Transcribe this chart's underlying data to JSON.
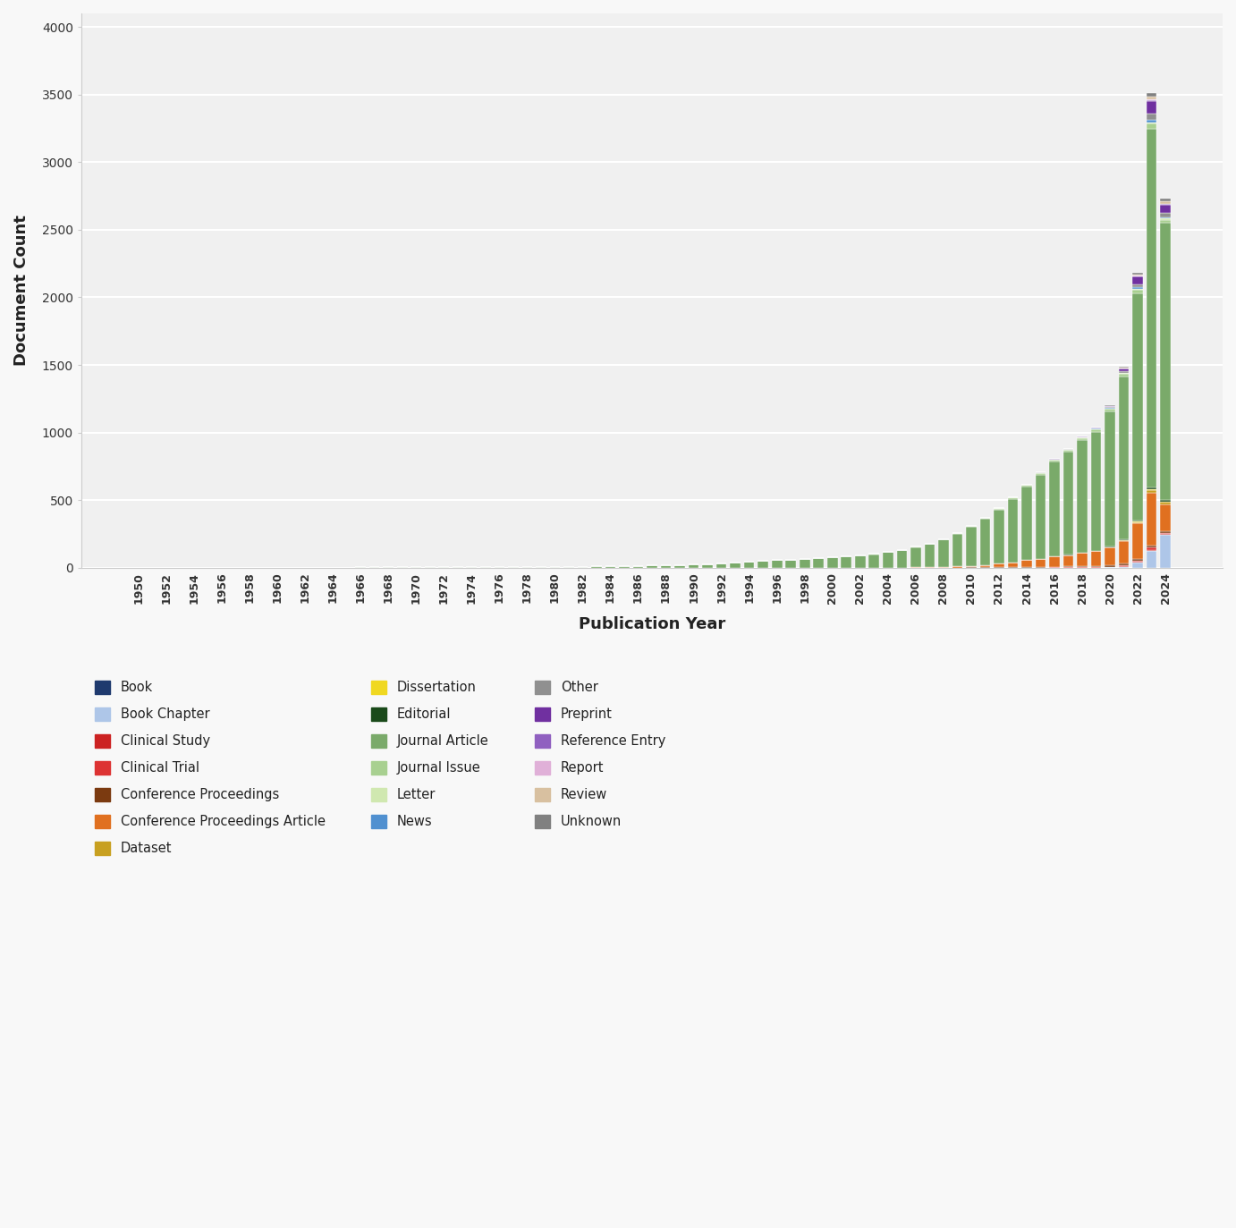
{
  "years": [
    1950,
    1951,
    1952,
    1953,
    1954,
    1955,
    1956,
    1957,
    1958,
    1959,
    1960,
    1961,
    1962,
    1963,
    1964,
    1965,
    1966,
    1967,
    1968,
    1969,
    1970,
    1971,
    1972,
    1973,
    1974,
    1975,
    1976,
    1977,
    1978,
    1979,
    1980,
    1981,
    1982,
    1983,
    1984,
    1985,
    1986,
    1987,
    1988,
    1989,
    1990,
    1991,
    1992,
    1993,
    1994,
    1995,
    1996,
    1997,
    1998,
    1999,
    2000,
    2001,
    2002,
    2003,
    2004,
    2005,
    2006,
    2007,
    2008,
    2009,
    2010,
    2011,
    2012,
    2013,
    2014,
    2015,
    2016,
    2017,
    2018,
    2019,
    2020,
    2021,
    2022,
    2023,
    2024
  ],
  "categories": [
    "Book",
    "Book Chapter",
    "Clinical Study",
    "Clinical Trial",
    "Conference Proceedings",
    "Conference Proceedings Article",
    "Dataset",
    "Dissertation",
    "Editorial",
    "Journal Article",
    "Journal Issue",
    "Letter",
    "News",
    "Other",
    "Preprint",
    "Reference Entry",
    "Report",
    "Review",
    "Unknown"
  ],
  "colors": {
    "Book": "#1f3a6e",
    "Book Chapter": "#aec6e8",
    "Clinical Study": "#cc2222",
    "Clinical Trial": "#dd3333",
    "Conference Proceedings": "#7b3a10",
    "Conference Proceedings Article": "#e07020",
    "Dataset": "#c8a020",
    "Dissertation": "#f0d820",
    "Editorial": "#1a4a1a",
    "Journal Article": "#7aaa6a",
    "Journal Issue": "#a8d090",
    "Letter": "#d0e8b0",
    "News": "#5090d0",
    "Other": "#909090",
    "Preprint": "#7030a0",
    "Reference Entry": "#9060c0",
    "Report": "#e0b0d8",
    "Review": "#d8c0a0",
    "Unknown": "#808080"
  },
  "data": {
    "Book": [
      0,
      0,
      0,
      0,
      0,
      0,
      0,
      0,
      0,
      0,
      0,
      0,
      0,
      0,
      0,
      0,
      0,
      0,
      0,
      0,
      0,
      0,
      0,
      0,
      0,
      0,
      0,
      0,
      0,
      0,
      0,
      0,
      0,
      0,
      0,
      0,
      0,
      0,
      0,
      0,
      0,
      0,
      0,
      0,
      0,
      0,
      0,
      0,
      0,
      0,
      0,
      0,
      0,
      0,
      0,
      0,
      0,
      0,
      0,
      0,
      0,
      0,
      0,
      0,
      0,
      0,
      0,
      0,
      0,
      0,
      0,
      0,
      1,
      1,
      0
    ],
    "Book Chapter": [
      0,
      0,
      0,
      0,
      0,
      0,
      0,
      0,
      0,
      0,
      0,
      0,
      0,
      0,
      0,
      0,
      0,
      0,
      0,
      0,
      0,
      0,
      0,
      0,
      0,
      0,
      0,
      0,
      0,
      0,
      0,
      0,
      0,
      0,
      0,
      0,
      0,
      0,
      0,
      0,
      0,
      0,
      0,
      0,
      0,
      0,
      0,
      0,
      0,
      0,
      0,
      0,
      0,
      0,
      0,
      0,
      0,
      0,
      0,
      0,
      0,
      0,
      0,
      0,
      0,
      0,
      0,
      0,
      0,
      0,
      2,
      8,
      35,
      120,
      240
    ],
    "Clinical Study": [
      0,
      0,
      0,
      0,
      0,
      0,
      0,
      0,
      0,
      0,
      0,
      0,
      0,
      0,
      0,
      0,
      0,
      0,
      0,
      0,
      0,
      0,
      0,
      0,
      0,
      0,
      0,
      0,
      0,
      0,
      0,
      0,
      0,
      0,
      0,
      0,
      0,
      0,
      0,
      0,
      0,
      0,
      0,
      0,
      0,
      0,
      0,
      0,
      0,
      0,
      0,
      0,
      0,
      0,
      0,
      0,
      0,
      0,
      0,
      0,
      0,
      0,
      0,
      0,
      0,
      0,
      0,
      0,
      0,
      0,
      1,
      2,
      6,
      12,
      8
    ],
    "Clinical Trial": [
      0,
      0,
      0,
      0,
      0,
      0,
      0,
      0,
      0,
      0,
      0,
      0,
      0,
      0,
      0,
      0,
      0,
      0,
      0,
      0,
      0,
      0,
      0,
      0,
      0,
      0,
      0,
      0,
      0,
      0,
      0,
      0,
      0,
      0,
      0,
      0,
      0,
      0,
      0,
      0,
      0,
      0,
      0,
      0,
      0,
      0,
      0,
      0,
      0,
      0,
      0,
      0,
      0,
      0,
      0,
      0,
      0,
      0,
      0,
      0,
      0,
      0,
      1,
      1,
      1,
      1,
      2,
      2,
      3,
      4,
      5,
      7,
      10,
      15,
      10
    ],
    "Conference Proceedings": [
      0,
      0,
      0,
      0,
      0,
      0,
      0,
      0,
      0,
      0,
      0,
      0,
      0,
      0,
      0,
      0,
      0,
      0,
      0,
      0,
      0,
      0,
      0,
      0,
      0,
      0,
      0,
      0,
      0,
      0,
      0,
      0,
      0,
      0,
      0,
      0,
      0,
      0,
      0,
      0,
      0,
      0,
      0,
      0,
      0,
      0,
      0,
      0,
      0,
      0,
      0,
      0,
      0,
      0,
      0,
      0,
      0,
      1,
      1,
      1,
      2,
      2,
      3,
      4,
      5,
      5,
      6,
      7,
      8,
      9,
      10,
      12,
      15,
      18,
      12
    ],
    "Conference Proceedings Article": [
      0,
      0,
      0,
      0,
      0,
      0,
      0,
      0,
      0,
      0,
      0,
      0,
      0,
      0,
      0,
      0,
      0,
      0,
      0,
      0,
      0,
      0,
      0,
      0,
      0,
      0,
      0,
      0,
      0,
      0,
      0,
      0,
      0,
      0,
      0,
      0,
      0,
      0,
      0,
      0,
      0,
      0,
      0,
      0,
      0,
      0,
      0,
      0,
      0,
      0,
      0,
      0,
      0,
      0,
      0,
      0,
      2,
      4,
      6,
      8,
      12,
      18,
      25,
      35,
      50,
      60,
      75,
      85,
      100,
      110,
      130,
      170,
      260,
      390,
      200
    ],
    "Dataset": [
      0,
      0,
      0,
      0,
      0,
      0,
      0,
      0,
      0,
      0,
      0,
      0,
      0,
      0,
      0,
      0,
      0,
      0,
      0,
      0,
      0,
      0,
      0,
      0,
      0,
      0,
      0,
      0,
      0,
      0,
      0,
      0,
      0,
      0,
      0,
      0,
      0,
      0,
      0,
      0,
      0,
      0,
      0,
      0,
      0,
      0,
      0,
      0,
      0,
      0,
      0,
      0,
      0,
      0,
      0,
      0,
      0,
      0,
      0,
      0,
      0,
      0,
      0,
      0,
      0,
      0,
      0,
      0,
      0,
      1,
      2,
      4,
      10,
      20,
      15
    ],
    "Dissertation": [
      0,
      0,
      0,
      0,
      0,
      0,
      0,
      0,
      0,
      0,
      0,
      0,
      0,
      0,
      0,
      0,
      0,
      0,
      0,
      0,
      0,
      0,
      0,
      0,
      0,
      0,
      0,
      0,
      0,
      0,
      0,
      0,
      0,
      0,
      0,
      0,
      0,
      0,
      0,
      0,
      0,
      0,
      0,
      0,
      0,
      0,
      0,
      0,
      0,
      0,
      0,
      0,
      0,
      0,
      0,
      0,
      0,
      0,
      0,
      0,
      0,
      0,
      0,
      0,
      0,
      0,
      0,
      0,
      0,
      0,
      1,
      2,
      4,
      6,
      4
    ],
    "Editorial": [
      0,
      0,
      0,
      0,
      0,
      0,
      0,
      0,
      0,
      0,
      0,
      0,
      0,
      0,
      0,
      0,
      0,
      0,
      0,
      0,
      0,
      0,
      0,
      0,
      0,
      0,
      0,
      0,
      0,
      0,
      0,
      0,
      0,
      0,
      0,
      0,
      0,
      0,
      0,
      0,
      0,
      0,
      0,
      0,
      0,
      0,
      0,
      0,
      0,
      0,
      0,
      0,
      0,
      0,
      0,
      0,
      0,
      0,
      0,
      0,
      0,
      0,
      1,
      1,
      1,
      1,
      2,
      2,
      3,
      3,
      5,
      7,
      10,
      15,
      10
    ],
    "Journal Article": [
      0,
      0,
      1,
      0,
      1,
      0,
      1,
      0,
      1,
      0,
      1,
      1,
      1,
      1,
      1,
      1,
      2,
      2,
      2,
      2,
      3,
      3,
      3,
      3,
      4,
      4,
      5,
      5,
      5,
      6,
      6,
      7,
      8,
      9,
      10,
      12,
      14,
      16,
      18,
      20,
      22,
      26,
      30,
      35,
      42,
      50,
      55,
      60,
      65,
      72,
      80,
      85,
      90,
      100,
      115,
      130,
      150,
      170,
      200,
      240,
      290,
      340,
      400,
      470,
      545,
      620,
      700,
      760,
      830,
      880,
      1000,
      1200,
      1680,
      2650,
      2050
    ],
    "Journal Issue": [
      0,
      0,
      0,
      0,
      0,
      0,
      0,
      0,
      0,
      0,
      0,
      0,
      0,
      0,
      0,
      0,
      0,
      0,
      0,
      0,
      0,
      0,
      0,
      0,
      0,
      0,
      0,
      0,
      0,
      0,
      0,
      0,
      0,
      0,
      0,
      0,
      0,
      0,
      0,
      0,
      0,
      0,
      1,
      1,
      1,
      1,
      1,
      1,
      1,
      1,
      1,
      1,
      2,
      2,
      2,
      3,
      3,
      4,
      5,
      5,
      6,
      7,
      8,
      9,
      11,
      12,
      13,
      14,
      15,
      16,
      18,
      20,
      26,
      36,
      25
    ],
    "Letter": [
      0,
      0,
      0,
      0,
      0,
      0,
      0,
      0,
      0,
      0,
      0,
      0,
      0,
      0,
      0,
      0,
      0,
      0,
      0,
      0,
      0,
      0,
      0,
      0,
      0,
      0,
      0,
      0,
      0,
      0,
      0,
      0,
      0,
      0,
      0,
      0,
      0,
      0,
      0,
      0,
      0,
      0,
      0,
      0,
      0,
      0,
      0,
      0,
      0,
      0,
      0,
      0,
      0,
      0,
      0,
      0,
      0,
      0,
      0,
      0,
      1,
      1,
      2,
      2,
      2,
      3,
      3,
      3,
      4,
      4,
      5,
      6,
      8,
      12,
      8
    ],
    "News": [
      0,
      0,
      0,
      0,
      0,
      0,
      0,
      0,
      0,
      0,
      0,
      0,
      0,
      0,
      0,
      0,
      0,
      0,
      0,
      0,
      0,
      0,
      0,
      0,
      0,
      0,
      0,
      0,
      0,
      0,
      0,
      0,
      0,
      0,
      0,
      0,
      0,
      0,
      0,
      0,
      0,
      0,
      0,
      0,
      0,
      0,
      0,
      0,
      0,
      0,
      0,
      0,
      0,
      0,
      0,
      0,
      0,
      0,
      0,
      0,
      0,
      0,
      0,
      0,
      0,
      0,
      0,
      0,
      1,
      1,
      2,
      4,
      8,
      15,
      12
    ],
    "Other": [
      0,
      0,
      0,
      0,
      0,
      0,
      0,
      0,
      0,
      0,
      0,
      0,
      0,
      0,
      0,
      0,
      0,
      0,
      0,
      0,
      0,
      0,
      0,
      0,
      0,
      0,
      0,
      0,
      0,
      0,
      0,
      0,
      0,
      0,
      0,
      0,
      0,
      0,
      0,
      0,
      0,
      0,
      0,
      0,
      0,
      0,
      0,
      0,
      0,
      0,
      0,
      0,
      0,
      0,
      0,
      0,
      0,
      0,
      0,
      0,
      0,
      0,
      0,
      0,
      0,
      1,
      1,
      2,
      3,
      4,
      6,
      10,
      20,
      50,
      30
    ],
    "Preprint": [
      0,
      0,
      0,
      0,
      0,
      0,
      0,
      0,
      0,
      0,
      0,
      0,
      0,
      0,
      0,
      0,
      0,
      0,
      0,
      0,
      0,
      0,
      0,
      0,
      0,
      0,
      0,
      0,
      0,
      0,
      0,
      0,
      0,
      0,
      0,
      0,
      0,
      0,
      0,
      0,
      0,
      0,
      0,
      0,
      0,
      0,
      0,
      0,
      0,
      0,
      0,
      0,
      0,
      0,
      0,
      0,
      0,
      0,
      0,
      0,
      0,
      0,
      0,
      0,
      0,
      0,
      1,
      2,
      3,
      5,
      8,
      20,
      60,
      90,
      60
    ],
    "Reference Entry": [
      0,
      0,
      0,
      0,
      0,
      0,
      0,
      0,
      0,
      0,
      0,
      0,
      0,
      0,
      0,
      0,
      0,
      0,
      0,
      0,
      0,
      0,
      0,
      0,
      0,
      0,
      0,
      0,
      0,
      0,
      0,
      0,
      0,
      0,
      0,
      0,
      0,
      0,
      0,
      0,
      0,
      0,
      0,
      0,
      0,
      0,
      0,
      0,
      0,
      0,
      0,
      0,
      0,
      0,
      0,
      0,
      0,
      0,
      0,
      0,
      0,
      0,
      0,
      0,
      0,
      0,
      0,
      0,
      0,
      0,
      1,
      2,
      4,
      8,
      5
    ],
    "Report": [
      0,
      0,
      0,
      0,
      0,
      0,
      0,
      0,
      0,
      0,
      0,
      0,
      0,
      0,
      0,
      0,
      0,
      0,
      0,
      0,
      0,
      0,
      0,
      0,
      0,
      0,
      0,
      0,
      0,
      0,
      0,
      0,
      0,
      0,
      0,
      0,
      0,
      0,
      0,
      0,
      0,
      0,
      0,
      0,
      0,
      0,
      0,
      0,
      0,
      0,
      0,
      0,
      0,
      0,
      0,
      0,
      0,
      0,
      0,
      0,
      0,
      0,
      0,
      0,
      0,
      0,
      0,
      0,
      0,
      0,
      1,
      2,
      4,
      6,
      4
    ],
    "Review": [
      0,
      0,
      0,
      0,
      0,
      0,
      0,
      0,
      0,
      0,
      0,
      0,
      0,
      0,
      0,
      0,
      0,
      0,
      0,
      0,
      0,
      0,
      0,
      0,
      0,
      0,
      0,
      0,
      0,
      0,
      0,
      0,
      0,
      0,
      0,
      0,
      0,
      0,
      0,
      0,
      0,
      0,
      0,
      0,
      0,
      0,
      0,
      0,
      0,
      0,
      0,
      0,
      0,
      0,
      0,
      0,
      0,
      0,
      0,
      0,
      0,
      0,
      0,
      0,
      0,
      0,
      0,
      0,
      0,
      1,
      2,
      4,
      10,
      20,
      15
    ],
    "Unknown": [
      0,
      0,
      0,
      0,
      0,
      0,
      0,
      0,
      0,
      0,
      0,
      0,
      0,
      0,
      0,
      0,
      0,
      0,
      0,
      0,
      0,
      0,
      0,
      0,
      0,
      0,
      0,
      0,
      0,
      0,
      0,
      0,
      0,
      0,
      0,
      0,
      0,
      0,
      0,
      0,
      0,
      0,
      0,
      0,
      0,
      0,
      0,
      0,
      0,
      0,
      0,
      0,
      0,
      0,
      0,
      0,
      0,
      0,
      0,
      0,
      0,
      0,
      0,
      0,
      0,
      0,
      0,
      0,
      0,
      0,
      2,
      4,
      12,
      30,
      20
    ]
  },
  "ylabel": "Document Count",
  "xlabel": "Publication Year",
  "ylim": [
    0,
    4100
  ],
  "tick_years": [
    1950,
    1952,
    1954,
    1956,
    1958,
    1960,
    1962,
    1964,
    1966,
    1968,
    1970,
    1972,
    1974,
    1976,
    1978,
    1980,
    1982,
    1984,
    1986,
    1988,
    1990,
    1992,
    1994,
    1996,
    1998,
    2000,
    2002,
    2004,
    2006,
    2008,
    2010,
    2012,
    2014,
    2016,
    2018,
    2020,
    2022,
    2024
  ],
  "bg_color": "#f0f0f0",
  "grid_color": "#ffffff"
}
